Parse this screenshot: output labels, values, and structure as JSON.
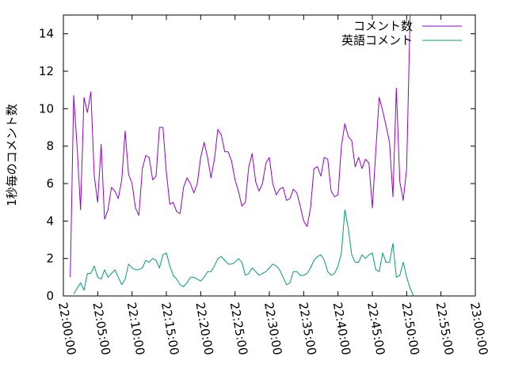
{
  "chart_data": {
    "type": "line",
    "title": "",
    "xlabel": "",
    "ylabel": "1秒毎のコメント数",
    "xlim": [
      "22:00:00",
      "23:00:00"
    ],
    "ylim": [
      0,
      15
    ],
    "grid": false,
    "legend_position": "top-right",
    "x_ticks": [
      "22:00:00",
      "22:05:00",
      "22:10:00",
      "22:15:00",
      "22:20:00",
      "22:25:00",
      "22:30:00",
      "22:35:00",
      "22:40:00",
      "22:45:00",
      "22:50:00",
      "22:55:00",
      "23:00:00"
    ],
    "y_ticks": [
      0,
      2,
      4,
      6,
      8,
      10,
      12,
      14
    ],
    "x_step_seconds": 30,
    "series": [
      {
        "name": "コメント数",
        "color": "#9400d3",
        "x_start": "22:01:00",
        "values": [
          1.0,
          10.7,
          8.0,
          4.6,
          10.6,
          9.8,
          10.9,
          6.4,
          5.0,
          8.1,
          4.1,
          4.6,
          5.8,
          5.6,
          5.2,
          6.2,
          8.8,
          6.5,
          6.0,
          4.7,
          4.3,
          6.8,
          7.5,
          7.4,
          6.2,
          6.4,
          9.0,
          9.0,
          6.6,
          4.9,
          5.0,
          4.5,
          4.4,
          5.8,
          6.3,
          6.0,
          5.5,
          6.0,
          7.4,
          8.2,
          7.4,
          6.3,
          7.3,
          8.9,
          8.6,
          7.7,
          7.7,
          7.2,
          6.2,
          5.6,
          4.8,
          5.0,
          6.9,
          7.6,
          6.1,
          5.6,
          6.0,
          7.1,
          7.4,
          6.0,
          5.4,
          5.7,
          5.8,
          5.1,
          5.2,
          5.7,
          5.5,
          4.8,
          4.0,
          3.7,
          4.7,
          6.8,
          6.9,
          6.4,
          7.4,
          7.3,
          5.6,
          5.3,
          5.4,
          8.0,
          9.2,
          8.5,
          8.3,
          6.9,
          7.4,
          6.8,
          7.3,
          7.1,
          4.7,
          7.7,
          10.6,
          9.9,
          9.1,
          8.2,
          5.3,
          11.1,
          6.1,
          5.1,
          6.8,
          15.0
        ]
      },
      {
        "name": "英語コメント",
        "color": "#009e73",
        "x_start": "22:01:30",
        "values": [
          0.1,
          0.4,
          0.7,
          0.3,
          1.2,
          1.2,
          1.6,
          1.0,
          0.9,
          1.4,
          1.0,
          1.2,
          1.4,
          1.0,
          0.6,
          0.9,
          1.7,
          1.5,
          1.4,
          1.4,
          1.5,
          1.9,
          1.8,
          2.0,
          1.9,
          1.5,
          2.2,
          2.3,
          1.6,
          1.1,
          0.9,
          0.6,
          0.5,
          0.7,
          1.0,
          1.0,
          0.9,
          0.8,
          1.0,
          1.3,
          1.3,
          1.6,
          2.0,
          2.1,
          1.9,
          1.7,
          1.7,
          1.8,
          2.0,
          1.8,
          1.1,
          1.2,
          1.5,
          1.3,
          1.1,
          1.2,
          1.3,
          1.5,
          1.7,
          1.6,
          1.4,
          1.0,
          0.6,
          0.7,
          1.3,
          1.3,
          1.1,
          1.1,
          1.2,
          1.5,
          1.9,
          2.1,
          2.2,
          1.9,
          1.3,
          1.1,
          1.2,
          1.6,
          2.3,
          4.6,
          3.6,
          2.2,
          1.8,
          1.8,
          2.2,
          2.0,
          2.2,
          2.3,
          1.4,
          1.3,
          2.3,
          1.8,
          1.8,
          2.8,
          1.0,
          1.1,
          1.8,
          1.0,
          0.4,
          0.0
        ]
      }
    ]
  }
}
